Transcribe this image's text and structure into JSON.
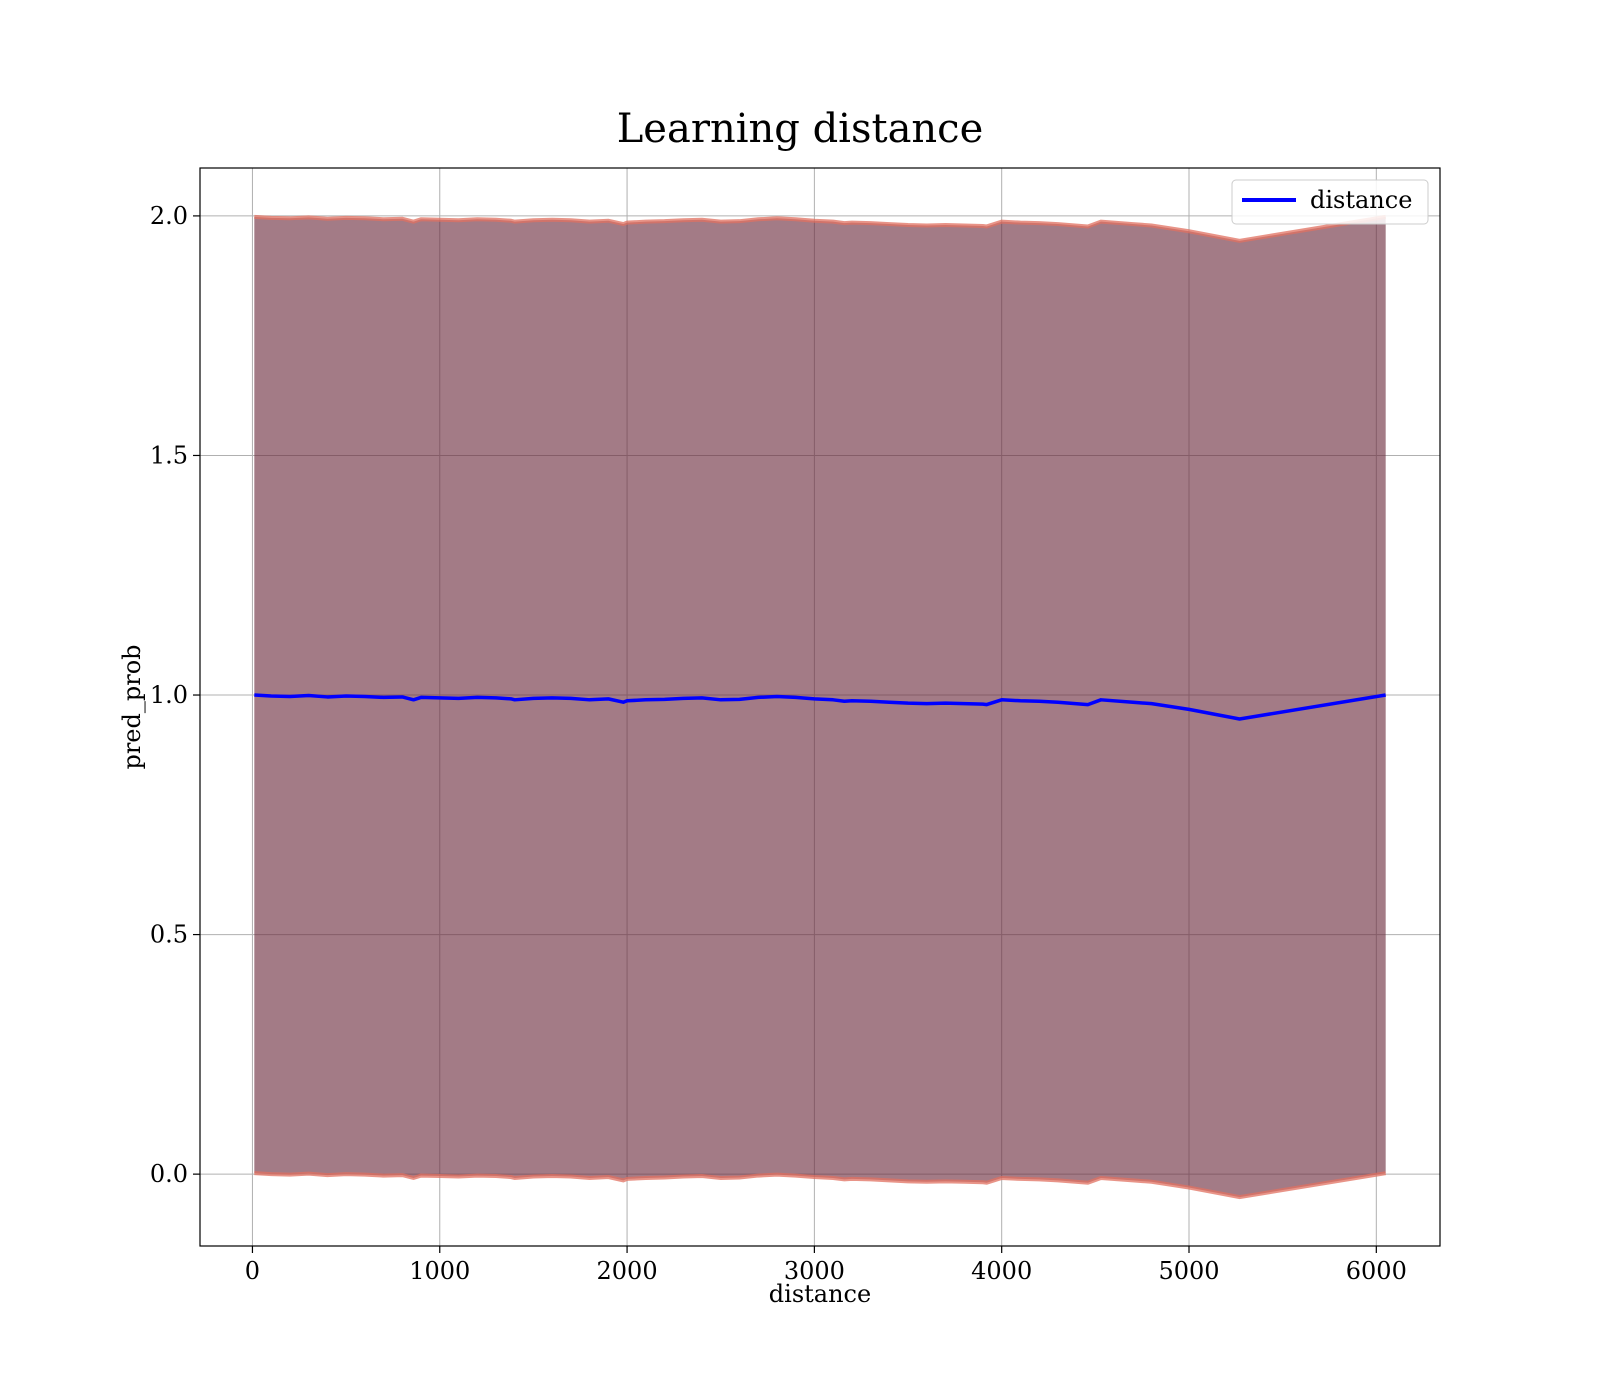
{
  "chart_data": {
    "type": "line",
    "title": "Learning distance",
    "xlabel": "distance",
    "ylabel": "pred_prob",
    "xlim": [
      -280,
      6340
    ],
    "ylim": [
      -0.15,
      2.1
    ],
    "xticks": [
      0,
      1000,
      2000,
      3000,
      4000,
      5000,
      6000
    ],
    "yticks": [
      0.0,
      0.5,
      1.0,
      1.5,
      2.0
    ],
    "xtick_labels": [
      "0",
      "1000",
      "2000",
      "3000",
      "4000",
      "5000",
      "6000"
    ],
    "ytick_labels": [
      "0.0",
      "0.5",
      "1.0",
      "1.5",
      "2.0"
    ],
    "grid": true,
    "legend_position": "top-right",
    "series": [
      {
        "name": "distance",
        "color": "#0000ff",
        "x": [
          10,
          100,
          200,
          300,
          400,
          500,
          600,
          700,
          800,
          860,
          900,
          1000,
          1100,
          1200,
          1300,
          1380,
          1400,
          1500,
          1600,
          1700,
          1800,
          1900,
          1980,
          2000,
          2100,
          2200,
          2300,
          2400,
          2500,
          2600,
          2700,
          2800,
          2900,
          3000,
          3100,
          3160,
          3200,
          3300,
          3400,
          3500,
          3600,
          3700,
          3800,
          3900,
          3920,
          4000,
          4100,
          4200,
          4300,
          4460,
          4530,
          4700,
          4800,
          5000,
          5270,
          6050
        ],
        "y": [
          1.0,
          0.998,
          0.997,
          0.999,
          0.996,
          0.998,
          0.997,
          0.995,
          0.996,
          0.99,
          0.995,
          0.994,
          0.993,
          0.995,
          0.994,
          0.992,
          0.99,
          0.993,
          0.994,
          0.993,
          0.99,
          0.992,
          0.985,
          0.988,
          0.99,
          0.991,
          0.993,
          0.994,
          0.99,
          0.991,
          0.995,
          0.997,
          0.995,
          0.992,
          0.99,
          0.987,
          0.988,
          0.987,
          0.985,
          0.983,
          0.982,
          0.983,
          0.982,
          0.981,
          0.98,
          0.99,
          0.988,
          0.987,
          0.985,
          0.98,
          0.99,
          0.985,
          0.982,
          0.97,
          0.95,
          1.0
        ],
        "band_color": "#6a2a3c",
        "band_edge_color": "#e07060",
        "band_upper_offset": 0.998,
        "band_lower_offset": 0.998
      }
    ]
  }
}
